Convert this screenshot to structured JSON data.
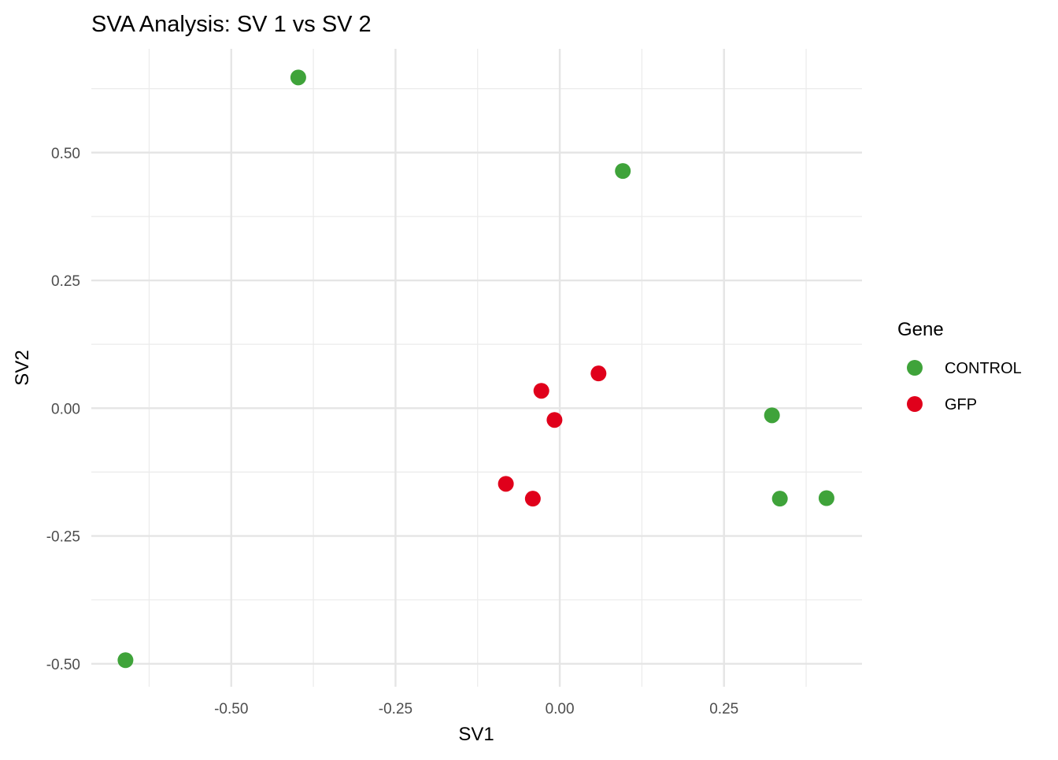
{
  "chart_data": {
    "type": "scatter",
    "title": "SVA Analysis: SV 1  vs SV 2",
    "xlabel": "SV1",
    "ylabel": "SV2",
    "xlim": [
      -0.713,
      0.46
    ],
    "ylim": [
      -0.545,
      0.703
    ],
    "x_ticks": [
      -0.5,
      -0.25,
      0.0,
      0.25
    ],
    "x_tick_labels": [
      "-0.50",
      "-0.25",
      "0.00",
      "0.25"
    ],
    "y_ticks": [
      -0.5,
      -0.25,
      0.0,
      0.25,
      0.5
    ],
    "y_tick_labels": [
      "-0.50",
      "-0.25",
      "0.00",
      "0.25",
      "0.50"
    ],
    "x_minor": [
      -0.625,
      -0.375,
      -0.125,
      0.125,
      0.375
    ],
    "y_minor": [
      -0.375,
      -0.125,
      0.125,
      0.375,
      0.625
    ],
    "grid": true,
    "legend": {
      "title": "Gene",
      "position": "right"
    },
    "series": [
      {
        "name": "CONTROL",
        "color": "#3fa33a",
        "points": [
          [
            -0.398,
            0.647
          ],
          [
            0.096,
            0.464
          ],
          [
            0.323,
            -0.014
          ],
          [
            0.335,
            -0.177
          ],
          [
            0.406,
            -0.176
          ],
          [
            -0.661,
            -0.493
          ]
        ]
      },
      {
        "name": "GFP",
        "color": "#e0001b",
        "points": [
          [
            0.059,
            0.068
          ],
          [
            -0.028,
            0.034
          ],
          [
            -0.008,
            -0.023
          ],
          [
            -0.082,
            -0.148
          ],
          [
            -0.041,
            -0.177
          ]
        ]
      }
    ]
  }
}
